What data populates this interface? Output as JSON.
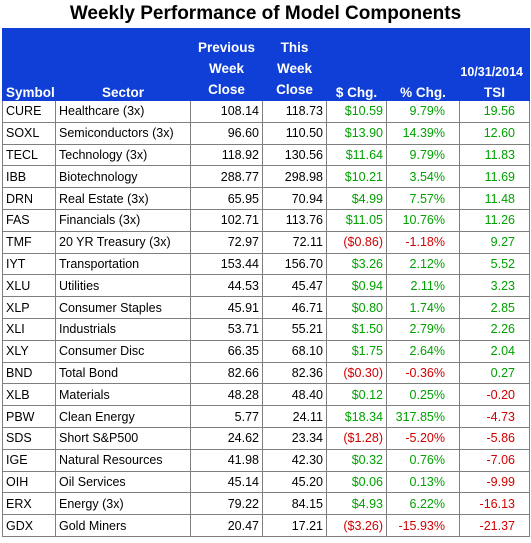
{
  "title": "Weekly Performance of Model Components",
  "updated": "Updated:  10/31/2014",
  "headers": {
    "symbol": "Symbol",
    "sector": "Sector",
    "prev": [
      "Previous",
      "Week",
      "Close"
    ],
    "this": [
      "This",
      "Week",
      "Close"
    ],
    "chg": "$ Chg.",
    "pct": "% Chg.",
    "tsi": "TSI"
  },
  "colors": {
    "header_bg": "#0f3fd6",
    "positive": "#00a100",
    "negative": "#d10000"
  },
  "rows": [
    {
      "symbol": "CURE",
      "sector": "Healthcare (3x)",
      "prev": "108.14",
      "this": "118.73",
      "chg": "$10.59",
      "pct": "9.79%",
      "tsi": "19.56",
      "neg": false,
      "tsi_neg": false
    },
    {
      "symbol": "SOXL",
      "sector": "Semiconductors (3x)",
      "prev": "96.60",
      "this": "110.50",
      "chg": "$13.90",
      "pct": "14.39%",
      "tsi": "12.60",
      "neg": false,
      "tsi_neg": false
    },
    {
      "symbol": "TECL",
      "sector": "Technology (3x)",
      "prev": "118.92",
      "this": "130.56",
      "chg": "$11.64",
      "pct": "9.79%",
      "tsi": "11.83",
      "neg": false,
      "tsi_neg": false
    },
    {
      "symbol": "IBB",
      "sector": "Biotechnology",
      "prev": "288.77",
      "this": "298.98",
      "chg": "$10.21",
      "pct": "3.54%",
      "tsi": "11.69",
      "neg": false,
      "tsi_neg": false
    },
    {
      "symbol": "DRN",
      "sector": "Real Estate (3x)",
      "prev": "65.95",
      "this": "70.94",
      "chg": "$4.99",
      "pct": "7.57%",
      "tsi": "11.48",
      "neg": false,
      "tsi_neg": false
    },
    {
      "symbol": "FAS",
      "sector": "Financials (3x)",
      "prev": "102.71",
      "this": "113.76",
      "chg": "$11.05",
      "pct": "10.76%",
      "tsi": "11.26",
      "neg": false,
      "tsi_neg": false
    },
    {
      "symbol": "TMF",
      "sector": "20 YR Treasury (3x)",
      "prev": "72.97",
      "this": "72.11",
      "chg": "($0.86)",
      "pct": "-1.18%",
      "tsi": "9.27",
      "neg": true,
      "tsi_neg": false
    },
    {
      "symbol": "IYT",
      "sector": "Transportation",
      "prev": "153.44",
      "this": "156.70",
      "chg": "$3.26",
      "pct": "2.12%",
      "tsi": "5.52",
      "neg": false,
      "tsi_neg": false
    },
    {
      "symbol": "XLU",
      "sector": "Utilities",
      "prev": "44.53",
      "this": "45.47",
      "chg": "$0.94",
      "pct": "2.11%",
      "tsi": "3.23",
      "neg": false,
      "tsi_neg": false
    },
    {
      "symbol": "XLP",
      "sector": "Consumer Staples",
      "prev": "45.91",
      "this": "46.71",
      "chg": "$0.80",
      "pct": "1.74%",
      "tsi": "2.85",
      "neg": false,
      "tsi_neg": false
    },
    {
      "symbol": "XLI",
      "sector": "Industrials",
      "prev": "53.71",
      "this": "55.21",
      "chg": "$1.50",
      "pct": "2.79%",
      "tsi": "2.26",
      "neg": false,
      "tsi_neg": false
    },
    {
      "symbol": "XLY",
      "sector": "Consumer Disc",
      "prev": "66.35",
      "this": "68.10",
      "chg": "$1.75",
      "pct": "2.64%",
      "tsi": "2.04",
      "neg": false,
      "tsi_neg": false
    },
    {
      "symbol": "BND",
      "sector": "Total Bond",
      "prev": "82.66",
      "this": "82.36",
      "chg": "($0.30)",
      "pct": "-0.36%",
      "tsi": "0.27",
      "neg": true,
      "tsi_neg": false
    },
    {
      "symbol": "XLB",
      "sector": "Materials",
      "prev": "48.28",
      "this": "48.40",
      "chg": "$0.12",
      "pct": "0.25%",
      "tsi": "-0.20",
      "neg": false,
      "tsi_neg": true
    },
    {
      "symbol": "PBW",
      "sector": "Clean Energy",
      "prev": "5.77",
      "this": "24.11",
      "chg": "$18.34",
      "pct": "317.85%",
      "tsi": "-4.73",
      "neg": false,
      "tsi_neg": true
    },
    {
      "symbol": "SDS",
      "sector": "Short S&P500",
      "prev": "24.62",
      "this": "23.34",
      "chg": "($1.28)",
      "pct": "-5.20%",
      "tsi": "-5.86",
      "neg": true,
      "tsi_neg": true
    },
    {
      "symbol": "IGE",
      "sector": "Natural Resources",
      "prev": "41.98",
      "this": "42.30",
      "chg": "$0.32",
      "pct": "0.76%",
      "tsi": "-7.06",
      "neg": false,
      "tsi_neg": true
    },
    {
      "symbol": "OIH",
      "sector": "Oil Services",
      "prev": "45.14",
      "this": "45.20",
      "chg": "$0.06",
      "pct": "0.13%",
      "tsi": "-9.99",
      "neg": false,
      "tsi_neg": true
    },
    {
      "symbol": "ERX",
      "sector": "Energy (3x)",
      "prev": "79.22",
      "this": "84.15",
      "chg": "$4.93",
      "pct": "6.22%",
      "tsi": "-16.13",
      "neg": false,
      "tsi_neg": true
    },
    {
      "symbol": "GDX",
      "sector": "Gold Miners",
      "prev": "20.47",
      "this": "17.21",
      "chg": "($3.26)",
      "pct": "-15.93%",
      "tsi": "-21.37",
      "neg": true,
      "tsi_neg": true
    }
  ]
}
